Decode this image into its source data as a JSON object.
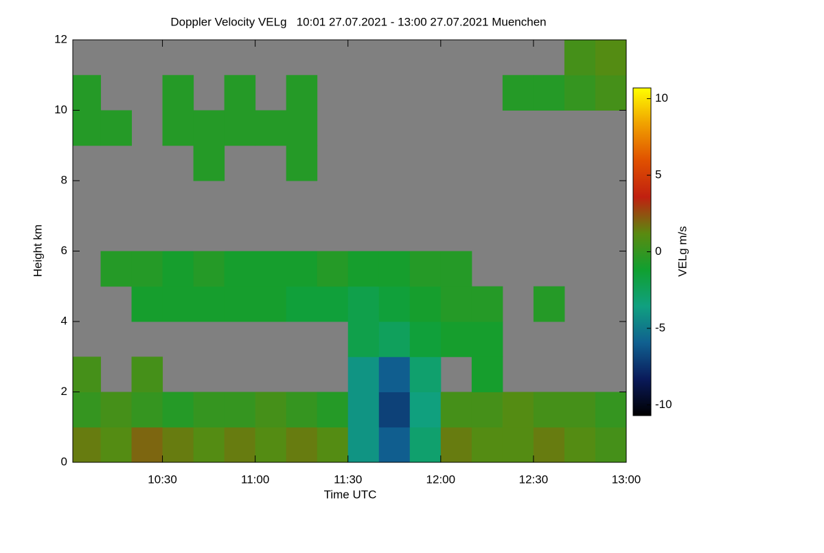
{
  "chart_data": {
    "type": "heatmap",
    "title": "Doppler Velocity VELg   10:01 27.07.2021 - 13:00 27.07.2021 Muenchen",
    "x_label": "Time UTC",
    "y_label": "Height km",
    "colorbar_label": "VELg m/s",
    "xlim": [
      10.0167,
      13.0
    ],
    "ylim": [
      0,
      12
    ],
    "xticks": [
      {
        "value": 10.5,
        "label": "10:30"
      },
      {
        "value": 11,
        "label": "11:00"
      },
      {
        "value": 11.5,
        "label": "11:30"
      },
      {
        "value": 12,
        "label": "12:00"
      },
      {
        "value": 12.5,
        "label": "12:30"
      },
      {
        "value": 13,
        "label": "13:00"
      }
    ],
    "yticks": [
      0,
      2,
      4,
      6,
      8,
      10,
      12
    ],
    "xbins": [
      10.0167,
      10.1667,
      10.3333,
      10.5,
      10.6667,
      10.8333,
      11,
      11.1667,
      11.3333,
      11.5,
      11.6667,
      11.8333,
      12,
      12.1667,
      12.3333,
      12.5,
      12.6667,
      12.8333,
      13
    ],
    "ybins": [
      0,
      1,
      2,
      3,
      4,
      5,
      6,
      7,
      8,
      9,
      10,
      11,
      12
    ],
    "z": [
      [
        1.5,
        1,
        2,
        1.5,
        1,
        1.5,
        1,
        1.5,
        1,
        -4,
        -6,
        -3,
        1.5,
        1,
        1,
        1.5,
        1,
        0.5
      ],
      [
        0,
        0.5,
        0,
        -0.5,
        0,
        0,
        0.5,
        0,
        -0.5,
        -4,
        -7,
        -3.5,
        0.5,
        0.5,
        1,
        0.5,
        0.5,
        0
      ],
      [
        0.5,
        null,
        0.5,
        null,
        null,
        null,
        null,
        null,
        null,
        -4,
        -6,
        -3,
        null,
        -1,
        null,
        null,
        null,
        null
      ],
      [
        null,
        null,
        null,
        null,
        null,
        null,
        null,
        null,
        null,
        -2,
        -2.5,
        -1.5,
        -1,
        -1,
        null,
        null,
        null,
        null
      ],
      [
        null,
        null,
        -1,
        -1,
        -1,
        -1,
        -1,
        -1.5,
        -1.5,
        -2,
        -1.5,
        -1,
        -0.5,
        -0.5,
        null,
        -0.5,
        null,
        null
      ],
      [
        null,
        -0.5,
        -0.5,
        -1,
        -0.5,
        -1,
        -1,
        -1,
        -0.5,
        -1,
        -1,
        -0.5,
        -0.5,
        null,
        null,
        null,
        null,
        null
      ],
      [
        null,
        null,
        null,
        null,
        null,
        null,
        null,
        null,
        null,
        null,
        null,
        null,
        null,
        null,
        null,
        null,
        null,
        null
      ],
      [
        null,
        null,
        null,
        null,
        null,
        null,
        null,
        null,
        null,
        null,
        null,
        null,
        null,
        null,
        null,
        null,
        null,
        null
      ],
      [
        null,
        null,
        null,
        null,
        -0.5,
        null,
        null,
        -0.5,
        null,
        null,
        null,
        null,
        null,
        null,
        null,
        null,
        null,
        null
      ],
      [
        -0.5,
        -0.5,
        null,
        -0.5,
        -0.5,
        -0.5,
        -0.5,
        -0.5,
        null,
        null,
        null,
        null,
        null,
        null,
        null,
        null,
        null,
        null
      ],
      [
        -0.5,
        null,
        null,
        -0.5,
        null,
        -0.5,
        null,
        -0.5,
        null,
        null,
        null,
        null,
        null,
        null,
        -0.5,
        -0.5,
        0,
        0.5
      ],
      [
        null,
        null,
        null,
        null,
        null,
        null,
        null,
        null,
        null,
        null,
        null,
        null,
        null,
        null,
        null,
        null,
        0.5,
        1
      ]
    ],
    "clim": [
      -10.7,
      10.7
    ],
    "cticks": [
      -10,
      -5,
      0,
      5,
      10
    ],
    "colorscale": [
      "#000000",
      "#0a1a5a",
      "#106090",
      "#10a080",
      "#10a030",
      "#5a8a10",
      "#c02010",
      "#e05000",
      "#f0a000",
      "#ffff00"
    ],
    "background": "#808080"
  }
}
